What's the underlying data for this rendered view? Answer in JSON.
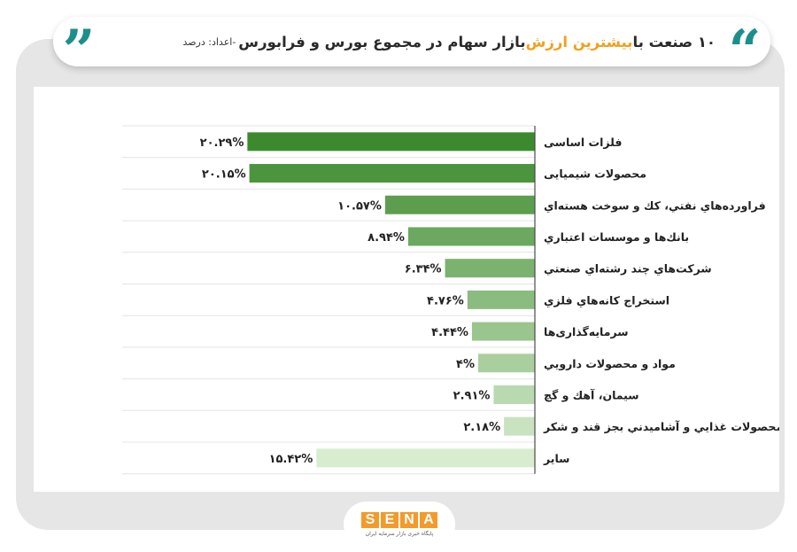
{
  "header": {
    "title_part1": "۱۰ صنعت با ",
    "title_highlight": "بیشترین ارزش",
    "title_part2": " بازار سهام در مجموع بورس و فرابورس",
    "source": "-اعداد: درصد",
    "quote_open": "“",
    "quote_close": "”"
  },
  "colors": {
    "accent": "#f0a01f",
    "quote": "#1c8f8a",
    "bar_dark": "#3d8a2e",
    "bar_light": "#d8edd0",
    "logo": "#f39a2a"
  },
  "logo": {
    "letters": [
      "S",
      "E",
      "N",
      "A"
    ],
    "subtitle": "پایگاه خبری بازار سرمایه ایران"
  },
  "chart_data": {
    "type": "bar",
    "orientation": "horizontal",
    "categories": [
      "فلزات اساسی",
      "محصولات شیمیایی",
      "فراورده‌هاي نفتي، كك و سوخت هسته‌اي",
      "بانك‌ها و موسسات اعتباري",
      "شركت‌هاي چند رشته‌اي صنعتي",
      "استخراج كانه‌هاي فلزي",
      "سرمایه‌گذاری‌ها",
      "مواد و محصولات دارويي",
      "سيمان، آهك و گچ",
      "محصولات غذايي و آشاميدني بجز قند و شكر",
      "سایر"
    ],
    "values": [
      20.29,
      20.15,
      10.57,
      8.94,
      6.34,
      4.76,
      4.44,
      4,
      2.91,
      2.18,
      15.42
    ],
    "labels": [
      "۲۰.۲۹%",
      "۲۰.۱۵%",
      "۱۰.۵۷%",
      "۸.۹۴%",
      "۶.۳۴%",
      "۴.۷۶%",
      "۴.۴۴%",
      "۴%",
      "۲.۹۱%",
      "۲.۱۸%",
      "۱۵.۴۲%"
    ],
    "title": "",
    "xlabel": "",
    "ylabel": "",
    "xlim": [
      0,
      21.5
    ],
    "grid": "horizontal separators"
  }
}
